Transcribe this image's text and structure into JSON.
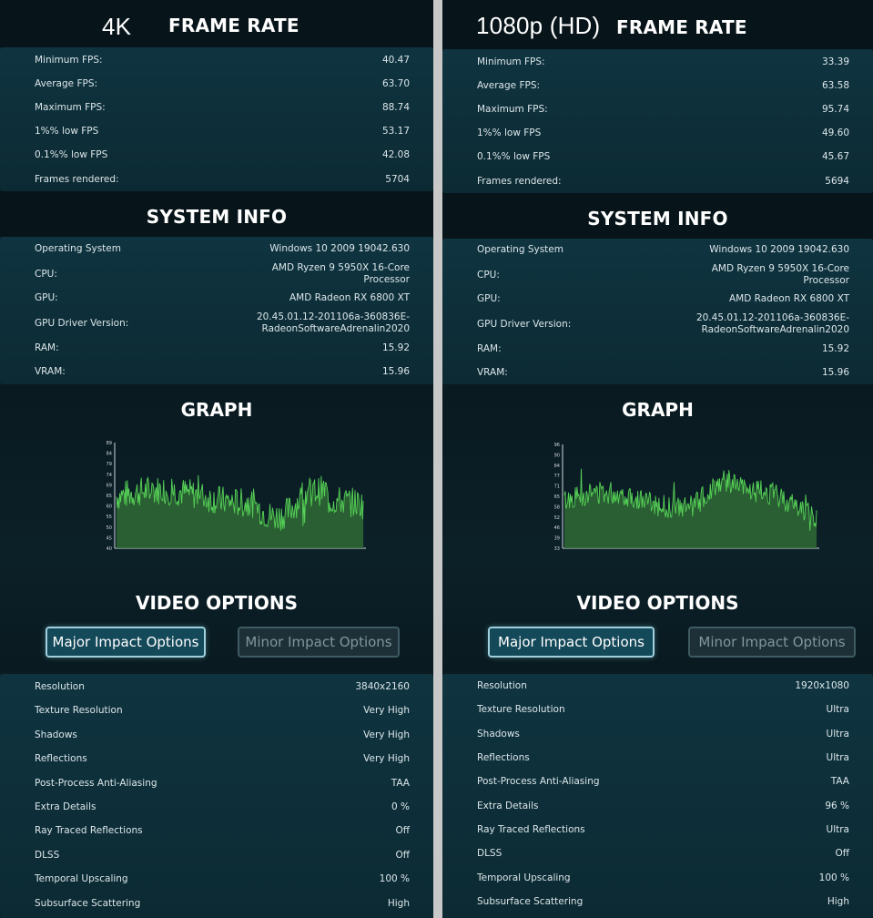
{
  "colors": {
    "panel_bg": "#0b1c22",
    "section_bg": "#0f3440",
    "graph_green": "#56d156",
    "graph_fill": "#2f6b35"
  },
  "left": {
    "resolution_tag": "4K",
    "frame_rate_title": "FRAME RATE",
    "frame_rate": [
      {
        "label": "Minimum FPS:",
        "value": "40.47"
      },
      {
        "label": "Average FPS:",
        "value": "63.70"
      },
      {
        "label": "Maximum FPS:",
        "value": "88.74"
      },
      {
        "label": "1%% low FPS",
        "value": "53.17"
      },
      {
        "label": "0.1%% low FPS",
        "value": "42.08"
      },
      {
        "label": "Frames rendered:",
        "value": "5704"
      }
    ],
    "system_info_title": "SYSTEM INFO",
    "system_info": [
      {
        "label": "Operating System",
        "value": "Windows 10 2009 19042.630"
      },
      {
        "label": "CPU:",
        "value": "AMD Ryzen 9 5950X 16-Core",
        "value2": "Processor"
      },
      {
        "label": "GPU:",
        "value": "AMD Radeon RX 6800 XT"
      },
      {
        "label": "GPU Driver Version:",
        "value": "20.45.01.12-201106a-360836E-",
        "value2": "RadeonSoftwareAdrenalin2020"
      },
      {
        "label": "RAM:",
        "value": "15.92"
      },
      {
        "label": "VRAM:",
        "value": "15.96"
      }
    ],
    "graph_title": "GRAPH",
    "graph_y_ticks": [
      "89",
      "84",
      "79",
      "74",
      "69",
      "65",
      "60",
      "55",
      "50",
      "45",
      "40"
    ],
    "graph_max": 89,
    "graph_min": 40,
    "video_options_title": "VIDEO OPTIONS",
    "major_button": "Major Impact Options",
    "minor_button": "Minor Impact Options",
    "video_options": [
      {
        "label": "Resolution",
        "value": "3840x2160"
      },
      {
        "label": "Texture Resolution",
        "value": "Very High"
      },
      {
        "label": "Shadows",
        "value": "Very High"
      },
      {
        "label": "Reflections",
        "value": "Very High"
      },
      {
        "label": "Post-Process Anti-Aliasing",
        "value": "TAA"
      },
      {
        "label": "Extra Details",
        "value": "0 %"
      },
      {
        "label": "Ray Traced Reflections",
        "value": "Off"
      },
      {
        "label": "DLSS",
        "value": "Off"
      },
      {
        "label": "Temporal Upscaling",
        "value": "100 %"
      },
      {
        "label": "Subsurface Scattering",
        "value": "High"
      }
    ]
  },
  "right": {
    "resolution_tag": "1080p (HD)",
    "frame_rate_title": "FRAME RATE",
    "frame_rate": [
      {
        "label": "Minimum FPS:",
        "value": "33.39"
      },
      {
        "label": "Average FPS:",
        "value": "63.58"
      },
      {
        "label": "Maximum FPS:",
        "value": "95.74"
      },
      {
        "label": "1%% low FPS",
        "value": "49.60"
      },
      {
        "label": "0.1%% low FPS",
        "value": "45.67"
      },
      {
        "label": "Frames rendered:",
        "value": "5694"
      }
    ],
    "system_info_title": "SYSTEM INFO",
    "system_info": [
      {
        "label": "Operating System",
        "value": "Windows 10 2009 19042.630"
      },
      {
        "label": "CPU:",
        "value": "AMD Ryzen 9 5950X 16-Core",
        "value2": "Processor"
      },
      {
        "label": "GPU:",
        "value": "AMD Radeon RX 6800 XT"
      },
      {
        "label": "GPU Driver Version:",
        "value": "20.45.01.12-201106a-360836E-",
        "value2": "RadeonSoftwareAdrenalin2020"
      },
      {
        "label": "RAM:",
        "value": "15.92"
      },
      {
        "label": "VRAM:",
        "value": "15.96"
      }
    ],
    "graph_title": "GRAPH",
    "graph_y_ticks": [
      "96",
      "90",
      "84",
      "77",
      "71",
      "65",
      "58",
      "52",
      "46",
      "39",
      "33"
    ],
    "graph_max": 96,
    "graph_min": 33,
    "video_options_title": "VIDEO OPTIONS",
    "major_button": "Major Impact Options",
    "minor_button": "Minor Impact Options",
    "video_options": [
      {
        "label": "Resolution",
        "value": "1920x1080"
      },
      {
        "label": "Texture Resolution",
        "value": "Ultra"
      },
      {
        "label": "Shadows",
        "value": "Ultra"
      },
      {
        "label": "Reflections",
        "value": "Ultra"
      },
      {
        "label": "Post-Process Anti-Aliasing",
        "value": "TAA"
      },
      {
        "label": "Extra Details",
        "value": "96 %"
      },
      {
        "label": "Ray Traced Reflections",
        "value": "Ultra"
      },
      {
        "label": "DLSS",
        "value": "Off"
      },
      {
        "label": "Temporal Upscaling",
        "value": "100 %"
      },
      {
        "label": "Subsurface Scattering",
        "value": "High"
      }
    ]
  }
}
